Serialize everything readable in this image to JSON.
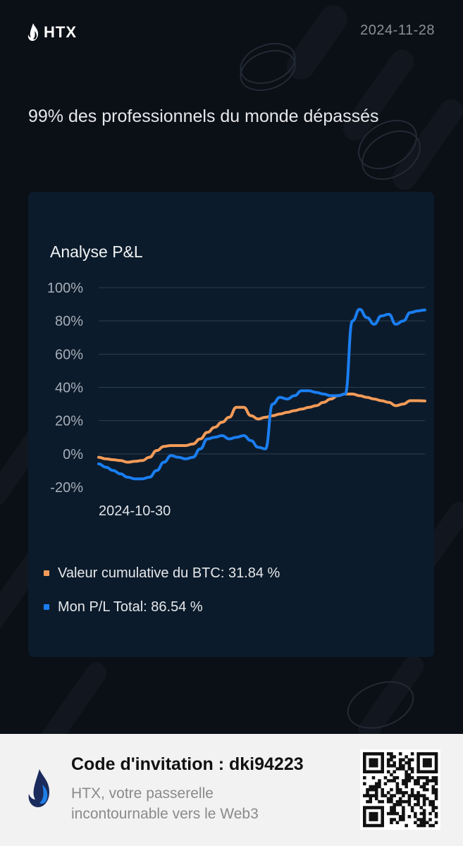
{
  "header": {
    "brand": "HTX",
    "date": "2024-11-28"
  },
  "headline": "99% des professionnels du monde dépassés",
  "card": {
    "title": "Analyse P&L"
  },
  "legend": {
    "btc": "Valeur cumulative du BTC: 31.84 %",
    "mine": "Mon P/L Total: 86.54 %"
  },
  "footer": {
    "invite": "Code d'invitation : dki94223",
    "tagline": "HTX, votre passerelle incontournable vers le Web3"
  },
  "colors": {
    "background": "#0b0f16",
    "card": "#0c1b2b",
    "btc": "#f49b58",
    "mine": "#1a7ef2",
    "footer": "#f2f2f2"
  },
  "icons": {
    "brand": "htx-flame-icon",
    "footer": "htx-flame-icon",
    "qr": "qr-code-icon"
  },
  "chart_data": {
    "type": "line",
    "title": "Analyse P&L",
    "ylim": [
      -20,
      100
    ],
    "y_ticks": [
      "100%",
      "80%",
      "60%",
      "40%",
      "20%",
      "0%",
      "-20%"
    ],
    "x_tick_labels": [
      "2024-10-30"
    ],
    "grid": true,
    "legend_placement": "bottom",
    "series": [
      {
        "name": "Valeur cumulative du BTC",
        "final_value": 31.84,
        "values": [
          -2,
          -3,
          -3.5,
          -4,
          -5,
          -4.5,
          -4,
          -2,
          2,
          4.5,
          5,
          5,
          5,
          6,
          9,
          13,
          16,
          19,
          22,
          28,
          28,
          23,
          21,
          22,
          23,
          24,
          25,
          26,
          27,
          28,
          29,
          31,
          33,
          35,
          36,
          36,
          35,
          34,
          33,
          32,
          31,
          29,
          30,
          32,
          32,
          31.84
        ]
      },
      {
        "name": "Mon P/L Total",
        "final_value": 86.54,
        "values": [
          -6,
          -8,
          -10,
          -12,
          -14,
          -15,
          -15,
          -14,
          -10,
          -5,
          -1,
          -2,
          -3,
          -2,
          3,
          9,
          10,
          11,
          9,
          10,
          11,
          8,
          4,
          3,
          30,
          34,
          33,
          35,
          38,
          38,
          37,
          36,
          35,
          35,
          36,
          80,
          87,
          82,
          78,
          83,
          84,
          78,
          80,
          85,
          86,
          86.54
        ]
      }
    ]
  }
}
